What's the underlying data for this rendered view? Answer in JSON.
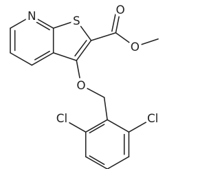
{
  "atoms": {
    "labels": [
      "N",
      "S",
      "O",
      "O",
      "O",
      "Cl",
      "Cl"
    ]
  }
}
